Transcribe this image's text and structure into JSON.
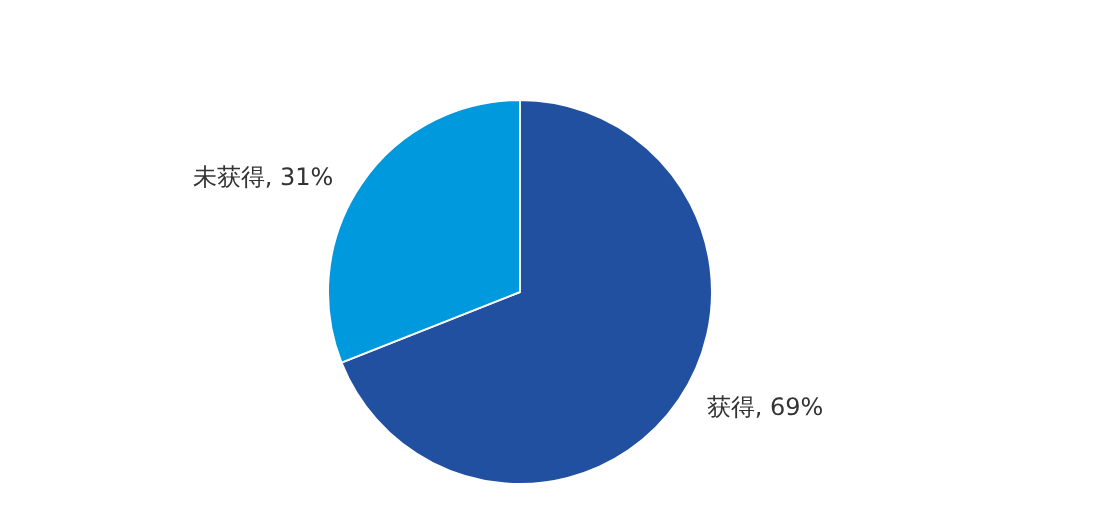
{
  "chart_data": {
    "type": "pie",
    "categories": [
      "获得",
      "未获得"
    ],
    "values": [
      69,
      31
    ],
    "colors": [
      "#2150a0",
      "#0099dd"
    ],
    "value_labels": [
      "69%",
      "31%"
    ],
    "legend": false
  }
}
